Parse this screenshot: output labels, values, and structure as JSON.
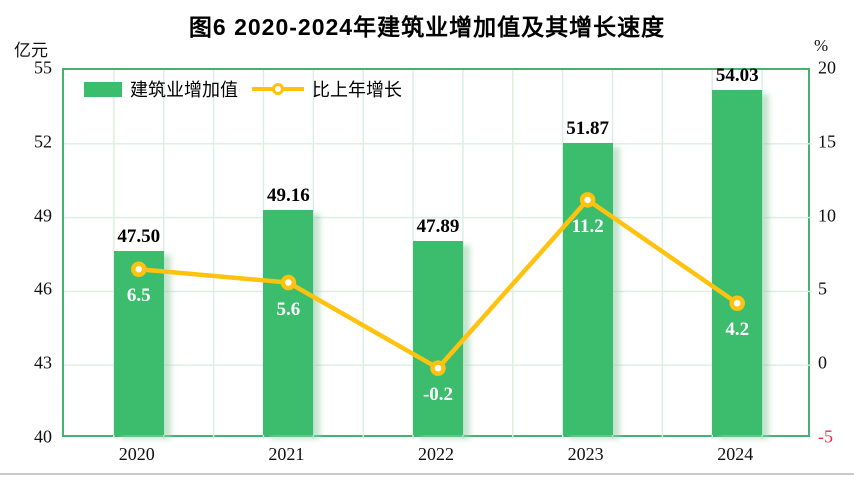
{
  "header": {
    "title": "图6 2020-2024年建筑业增加值及其增长速度"
  },
  "chart_data": {
    "type": "bar+line combo",
    "title": "图6 2020-2024年建筑业增加值及其增长速度",
    "categories": [
      "2020",
      "2021",
      "2022",
      "2023",
      "2024"
    ],
    "series": [
      {
        "name": "建筑业增加值",
        "type": "bar",
        "axis": "left",
        "values": [
          47.5,
          49.16,
          47.89,
          51.87,
          54.03
        ],
        "data_labels": [
          "47.50",
          "49.16",
          "47.89",
          "51.87",
          "54.03"
        ],
        "color": "#3cbd6e"
      },
      {
        "name": "比上年增长",
        "type": "line",
        "axis": "right",
        "values": [
          6.5,
          5.6,
          -0.2,
          11.2,
          4.2
        ],
        "data_labels": [
          "6.5",
          "5.6",
          "-0.2",
          "11.2",
          "4.2"
        ],
        "color": "#ffc20e",
        "marker": "circle-white-center"
      }
    ],
    "left_axis": {
      "unit_label": "亿元",
      "min": 40,
      "max": 55,
      "step": 3,
      "ticks": [
        "55",
        "52",
        "49",
        "46",
        "43",
        "40"
      ]
    },
    "right_axis": {
      "unit_label": "%",
      "min": -5,
      "max": 20,
      "step": 5,
      "ticks": [
        "20",
        "15",
        "10",
        "5",
        "0",
        "-5"
      ],
      "negative_tick_color": "#e0314b"
    },
    "legend": {
      "position": "top-left-inside",
      "entries": [
        "建筑业增加值",
        "比上年增长"
      ]
    },
    "grid": {
      "horizontal": true,
      "vertical": true,
      "vertical_divisions": 15,
      "color": "#d8efe1"
    },
    "plot_border_color": "#46b272",
    "bar_label_color": "#000000",
    "line_label_color": "#ffffff"
  }
}
